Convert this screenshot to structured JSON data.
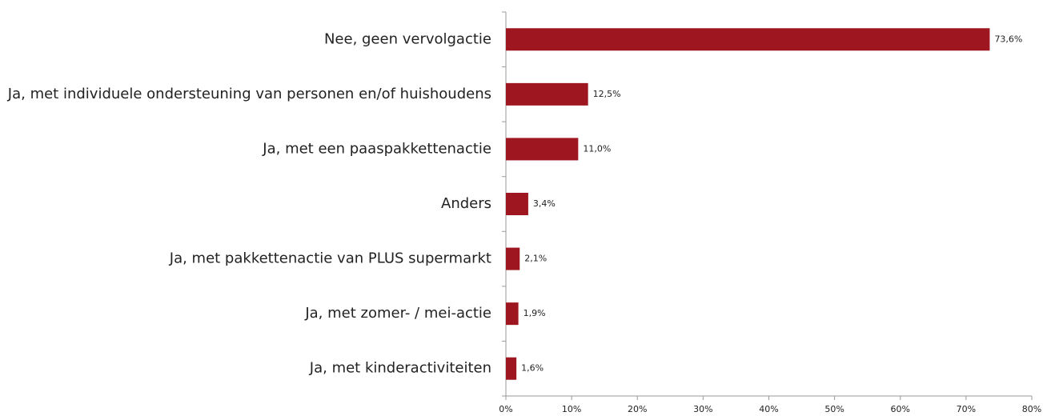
{
  "chart_data": {
    "type": "hbar",
    "categories": [
      "Nee, geen vervolgactie",
      "Ja, met individuele ondersteuning van personen en/of huishoudens",
      "Ja, met een paaspakkettenactie",
      "Anders",
      "Ja, met pakkettenactie van PLUS supermarkt",
      "Ja, met zomer- / mei-actie",
      "Ja, met kinderactiviteiten"
    ],
    "values": [
      73.6,
      12.5,
      11.0,
      3.4,
      2.1,
      1.9,
      1.6
    ],
    "value_labels": [
      "73,6%",
      "12,5%",
      "11,0%",
      "3,4%",
      "2,1%",
      "1,9%",
      "1,6%"
    ],
    "color": "#9e1620",
    "xlim": [
      0,
      80
    ],
    "xticks": [
      {
        "value": 0,
        "label": "0%"
      },
      {
        "value": 10,
        "label": "10%"
      },
      {
        "value": 20,
        "label": "20%"
      },
      {
        "value": 30,
        "label": "30%"
      },
      {
        "value": 40,
        "label": "40%"
      },
      {
        "value": 50,
        "label": "50%"
      },
      {
        "value": 60,
        "label": "60%"
      },
      {
        "value": 70,
        "label": "70%"
      },
      {
        "value": 80,
        "label": "80%"
      }
    ],
    "grid": false
  }
}
